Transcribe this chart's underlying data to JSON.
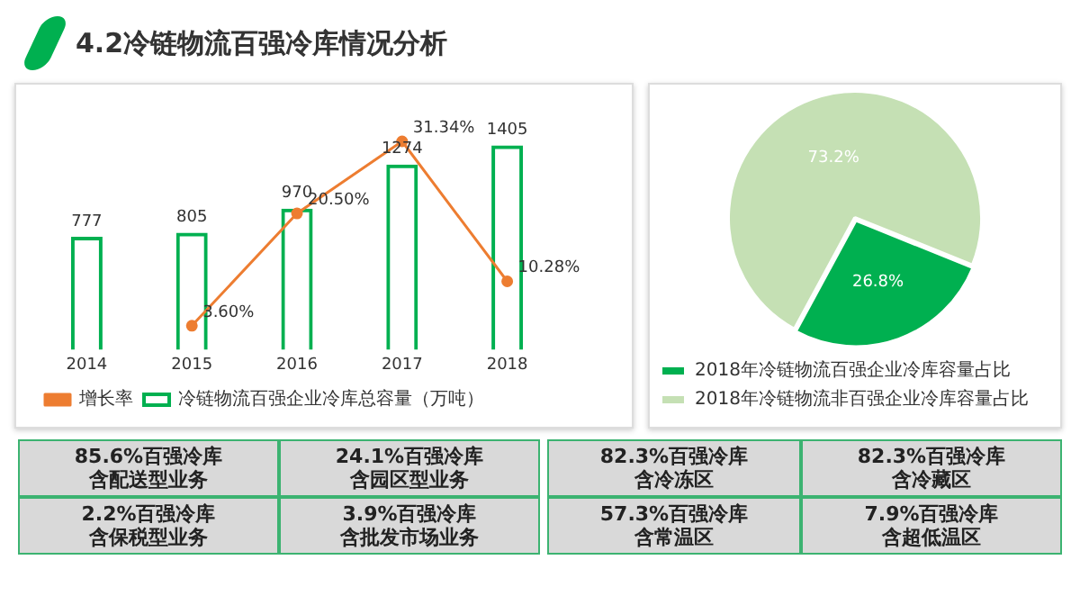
{
  "chart_data": [
    {
      "type": "bar",
      "title": "4.2冷链物流百强冷库情况分析",
      "categories": [
        "2014",
        "2015",
        "2016",
        "2017",
        "2018"
      ],
      "series": [
        {
          "name": "冷链物流百强企业冷库总容量（万吨）",
          "type": "bar",
          "color": "#00b050",
          "values": [
            777,
            805,
            970,
            1274,
            1405
          ],
          "value_labels": [
            "777",
            "805",
            "970",
            "1274",
            "1405"
          ]
        },
        {
          "name": "增长率",
          "type": "line",
          "axis": "y2",
          "color": "#ed7d31",
          "marker": "circle",
          "values": [
            null,
            3.6,
            20.5,
            31.34,
            10.28
          ],
          "value_labels": [
            null,
            "3.60%",
            "20.50%",
            "31.34%",
            "10.28%"
          ]
        }
      ],
      "legend": "bottom",
      "tick_labels": "x"
    },
    {
      "type": "pie",
      "categories": [
        "2018年冷链物流百强企业冷库容量占比",
        "2018年冷链物流非百强企业冷库容量占比"
      ],
      "values": [
        26.8,
        73.2
      ],
      "colors": [
        "#00b050",
        "#c5e0b4"
      ],
      "value_labels": [
        "26.8%",
        "73.2%"
      ],
      "legend": "bottom"
    },
    {
      "type": "other",
      "annotations": [
        "85.6%百强冷库",
        "含配送型业务",
        "24.1%百强冷库",
        "含园区型业务",
        "82.3%百强冷库",
        "含冷冻区",
        "82.3%百强冷库",
        "含冷藏区",
        "2.2%百强冷库",
        "含保税型业务",
        "3.9%百强冷库",
        "含批发市场业务",
        "57.3%百强冷库",
        "含常温区",
        "7.9%百强冷库",
        "含超低温区"
      ]
    }
  ]
}
